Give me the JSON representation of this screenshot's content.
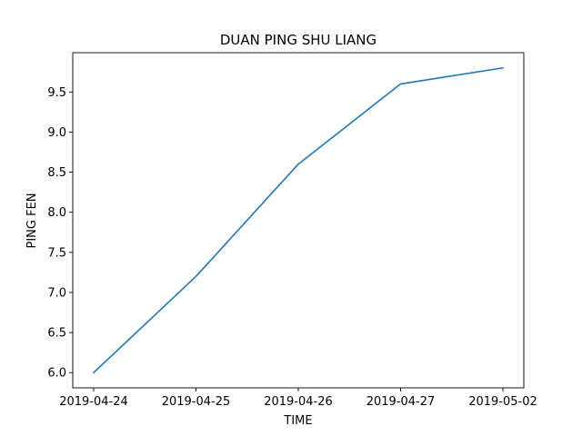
{
  "chart_data": {
    "type": "line",
    "title": "DUAN PING SHU LIANG",
    "xlabel": "TIME",
    "ylabel": "PING FEN",
    "categories": [
      "2019-04-24",
      "2019-04-25",
      "2019-04-26",
      "2019-04-27",
      "2019-05-02"
    ],
    "series": [
      {
        "values": [
          6.0,
          7.2,
          8.6,
          9.6,
          9.8
        ],
        "color": "#1f77b4"
      }
    ],
    "ylim": [
      5.81,
      9.99
    ],
    "yticks": [
      "6.0",
      "6.5",
      "7.0",
      "7.5",
      "8.0",
      "8.5",
      "9.0",
      "9.5"
    ],
    "grid": false,
    "legend": "none"
  }
}
